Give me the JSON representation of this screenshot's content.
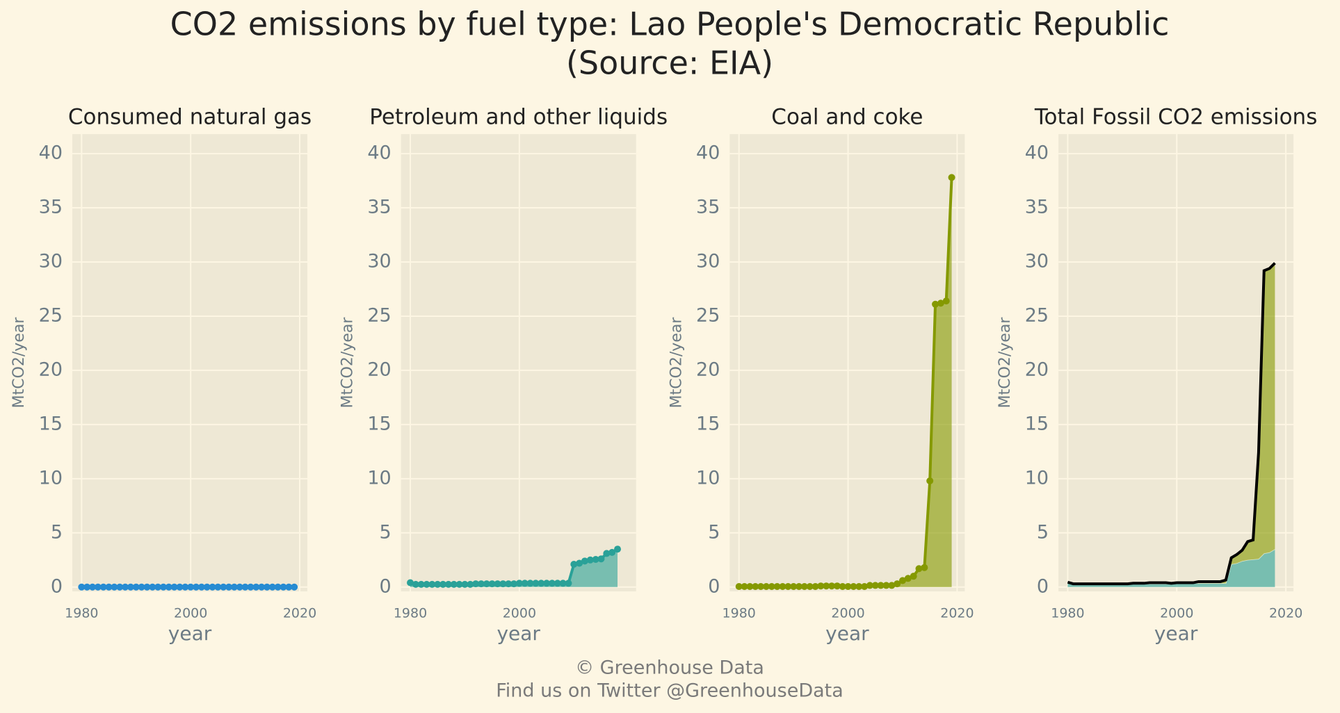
{
  "title": [
    "CO2 emissions by fuel type: Lao People's Democratic Republic",
    "(Source: EIA)"
  ],
  "footer": [
    "© Greenhouse Data",
    "Find us on Twitter @GreenhouseData"
  ],
  "chart_data": [
    {
      "type": "line",
      "title": "Consumed natural gas",
      "xlabel": "year",
      "ylabel": "MtCO2/year",
      "x": [
        1980,
        1981,
        1982,
        1983,
        1984,
        1985,
        1986,
        1987,
        1988,
        1989,
        1990,
        1991,
        1992,
        1993,
        1994,
        1995,
        1996,
        1997,
        1998,
        1999,
        2000,
        2001,
        2002,
        2003,
        2004,
        2005,
        2006,
        2007,
        2008,
        2009,
        2010,
        2011,
        2012,
        2013,
        2014,
        2015,
        2016,
        2017,
        2018,
        2019
      ],
      "series": [
        {
          "color": "#268bd2",
          "values": [
            0,
            0,
            0,
            0,
            0,
            0,
            0,
            0,
            0,
            0,
            0,
            0,
            0,
            0,
            0,
            0,
            0,
            0,
            0,
            0,
            0,
            0,
            0,
            0,
            0,
            0,
            0,
            0,
            0,
            0,
            0,
            0,
            0,
            0,
            0,
            0,
            0,
            0,
            0,
            0
          ]
        }
      ],
      "xlim": [
        1978.3,
        2021.4
      ],
      "ylim": [
        -0.4,
        41.8
      ],
      "xticks": [
        1980,
        2000,
        2020
      ],
      "yticks": [
        0,
        5,
        10,
        15,
        20,
        25,
        30,
        35,
        40
      ],
      "grid": true
    },
    {
      "type": "line",
      "title": "Petroleum and other liquids",
      "xlabel": "year",
      "ylabel": "MtCO2/year",
      "x": [
        1980,
        1981,
        1982,
        1983,
        1984,
        1985,
        1986,
        1987,
        1988,
        1989,
        1990,
        1991,
        1992,
        1993,
        1994,
        1995,
        1996,
        1997,
        1998,
        1999,
        2000,
        2001,
        2002,
        2003,
        2004,
        2005,
        2006,
        2007,
        2008,
        2009,
        2010,
        2011,
        2012,
        2013,
        2014,
        2015,
        2016,
        2017,
        2018
      ],
      "series": [
        {
          "color": "#2aa198",
          "values": [
            0.4,
            0.25,
            0.25,
            0.25,
            0.25,
            0.25,
            0.25,
            0.25,
            0.25,
            0.25,
            0.25,
            0.25,
            0.3,
            0.3,
            0.3,
            0.3,
            0.3,
            0.3,
            0.3,
            0.3,
            0.35,
            0.35,
            0.35,
            0.35,
            0.35,
            0.35,
            0.35,
            0.35,
            0.35,
            0.35,
            2.1,
            2.2,
            2.4,
            2.5,
            2.55,
            2.6,
            3.1,
            3.2,
            3.5
          ]
        }
      ],
      "xlim": [
        1978.3,
        2021.4
      ],
      "ylim": [
        -0.4,
        41.8
      ],
      "xticks": [
        1980,
        2000
      ],
      "yticks": [
        0,
        5,
        10,
        15,
        20,
        25,
        30,
        35,
        40
      ],
      "grid": true
    },
    {
      "type": "line",
      "title": "Coal and coke",
      "xlabel": "year",
      "ylabel": "MtCO2/year",
      "x": [
        1980,
        1981,
        1982,
        1983,
        1984,
        1985,
        1986,
        1987,
        1988,
        1989,
        1990,
        1991,
        1992,
        1993,
        1994,
        1995,
        1996,
        1997,
        1998,
        1999,
        2000,
        2001,
        2002,
        2003,
        2004,
        2005,
        2006,
        2007,
        2008,
        2009,
        2010,
        2011,
        2012,
        2013,
        2014,
        2015,
        2016,
        2017,
        2018,
        2019
      ],
      "series": [
        {
          "color": "#859900",
          "values": [
            0.05,
            0.05,
            0.05,
            0.05,
            0.05,
            0.05,
            0.05,
            0.05,
            0.05,
            0.05,
            0.05,
            0.05,
            0.05,
            0.05,
            0.05,
            0.1,
            0.1,
            0.1,
            0.1,
            0.05,
            0.05,
            0.05,
            0.05,
            0.05,
            0.15,
            0.15,
            0.15,
            0.15,
            0.15,
            0.3,
            0.6,
            0.8,
            1.0,
            1.7,
            1.8,
            9.8,
            26.1,
            26.2,
            26.4,
            37.8
          ]
        }
      ],
      "xlim": [
        1978.3,
        2021.4
      ],
      "ylim": [
        -0.4,
        41.8
      ],
      "xticks": [
        1980,
        2000,
        2020
      ],
      "yticks": [
        0,
        5,
        10,
        15,
        20,
        25,
        30,
        35,
        40
      ],
      "grid": true
    },
    {
      "type": "stacked_area",
      "title": "Total Fossil CO2 emissions",
      "xlabel": "year",
      "ylabel": "MtCO2/year",
      "x": [
        1980,
        1981,
        1982,
        1983,
        1984,
        1985,
        1986,
        1987,
        1988,
        1989,
        1990,
        1991,
        1992,
        1993,
        1994,
        1995,
        1996,
        1997,
        1998,
        1999,
        2000,
        2001,
        2002,
        2003,
        2004,
        2005,
        2006,
        2007,
        2008,
        2009,
        2010,
        2011,
        2012,
        2013,
        2014,
        2015,
        2016,
        2017,
        2018
      ],
      "series": [
        {
          "color": "#2aa198",
          "values": [
            0.4,
            0.25,
            0.25,
            0.25,
            0.25,
            0.25,
            0.25,
            0.25,
            0.25,
            0.25,
            0.25,
            0.25,
            0.3,
            0.3,
            0.3,
            0.3,
            0.3,
            0.3,
            0.3,
            0.3,
            0.35,
            0.35,
            0.35,
            0.35,
            0.35,
            0.35,
            0.35,
            0.35,
            0.35,
            0.35,
            2.1,
            2.2,
            2.4,
            2.5,
            2.55,
            2.6,
            3.1,
            3.2,
            3.5
          ]
        },
        {
          "color": "#859900",
          "values": [
            0.05,
            0.05,
            0.05,
            0.05,
            0.05,
            0.05,
            0.05,
            0.05,
            0.05,
            0.05,
            0.05,
            0.05,
            0.05,
            0.05,
            0.05,
            0.1,
            0.1,
            0.1,
            0.1,
            0.05,
            0.05,
            0.05,
            0.05,
            0.05,
            0.15,
            0.15,
            0.15,
            0.15,
            0.15,
            0.3,
            0.6,
            0.8,
            1.0,
            1.7,
            1.8,
            9.8,
            26.1,
            26.2,
            26.4
          ]
        }
      ],
      "total": {
        "color": "#000000",
        "values": [
          0.45,
          0.3,
          0.3,
          0.3,
          0.3,
          0.3,
          0.3,
          0.3,
          0.3,
          0.3,
          0.3,
          0.3,
          0.35,
          0.35,
          0.35,
          0.4,
          0.4,
          0.4,
          0.4,
          0.35,
          0.4,
          0.4,
          0.4,
          0.4,
          0.5,
          0.5,
          0.5,
          0.5,
          0.5,
          0.65,
          2.7,
          3.0,
          3.4,
          4.2,
          4.35,
          12.4,
          29.2,
          29.4,
          29.9
        ]
      },
      "xlim": [
        1978.3,
        2021.4
      ],
      "ylim": [
        -0.4,
        41.8
      ],
      "xticks": [
        1980,
        2000,
        2020
      ],
      "yticks": [
        0,
        5,
        10,
        15,
        20,
        25,
        30,
        35,
        40
      ],
      "grid": true
    }
  ]
}
